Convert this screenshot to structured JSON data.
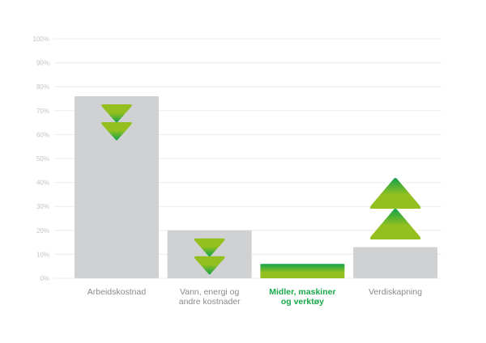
{
  "chart_data": {
    "type": "bar",
    "title": "",
    "xlabel": "",
    "ylabel": "",
    "ylim": [
      0,
      100
    ],
    "y_ticks": [
      "0%",
      "10%",
      "20%",
      "30%",
      "40%",
      "50%",
      "60%",
      "70%",
      "80%",
      "90%",
      "100%"
    ],
    "grid": true,
    "categories": [
      {
        "lines": [
          "Arbeidskostnad"
        ],
        "highlight": false,
        "value": 76,
        "fill": "gray",
        "arrows": "down"
      },
      {
        "lines": [
          "Vann, energi og",
          "andre kostnader"
        ],
        "highlight": false,
        "value": 20,
        "fill": "gray",
        "arrows": "down"
      },
      {
        "lines": [
          "Midler, maskiner",
          "og verktøy"
        ],
        "highlight": true,
        "value": 6,
        "fill": "green-gradient",
        "arrows": "none"
      },
      {
        "lines": [
          "Verdiskapning"
        ],
        "highlight": false,
        "value": 13,
        "fill": "gray",
        "arrows": "up"
      }
    ],
    "colors": {
      "bar": "#d0d1d3",
      "grid": "#ececec",
      "green_dark": "#12a24a",
      "green_light": "#93c01f",
      "highlight_label": "#1aa84a"
    }
  }
}
